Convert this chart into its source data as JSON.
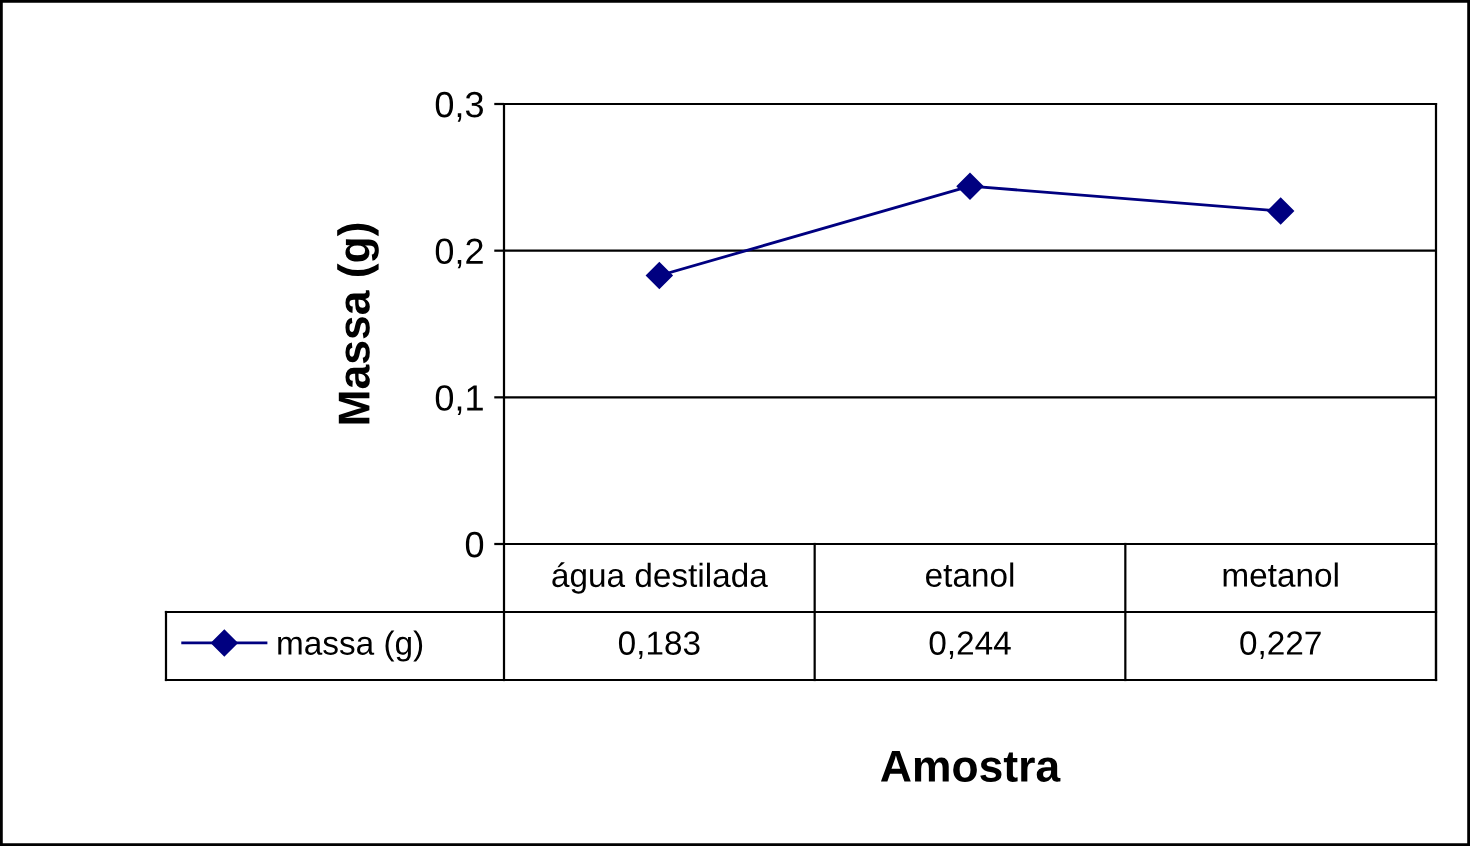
{
  "chart_data": {
    "type": "line",
    "xlabel": "Amostra",
    "ylabel": "Massa (g)",
    "categories": [
      "água destilada",
      "etanol",
      "metanol"
    ],
    "series": [
      {
        "name": "massa (g)",
        "color": "#000080",
        "values": [
          0.183,
          0.244,
          0.227
        ],
        "value_labels": [
          "0,183",
          "0,244",
          "0,227"
        ]
      }
    ],
    "ylim": [
      0,
      0.3
    ],
    "yticks": [
      0,
      {
        "value": 0.1,
        "label": "0,1"
      },
      {
        "value": 0.2,
        "label": "0,2"
      },
      {
        "value": 0.3,
        "label": "0,3"
      }
    ],
    "grid": "y",
    "legend": "bottom left",
    "marker": "diamond",
    "line_style": "solid"
  }
}
